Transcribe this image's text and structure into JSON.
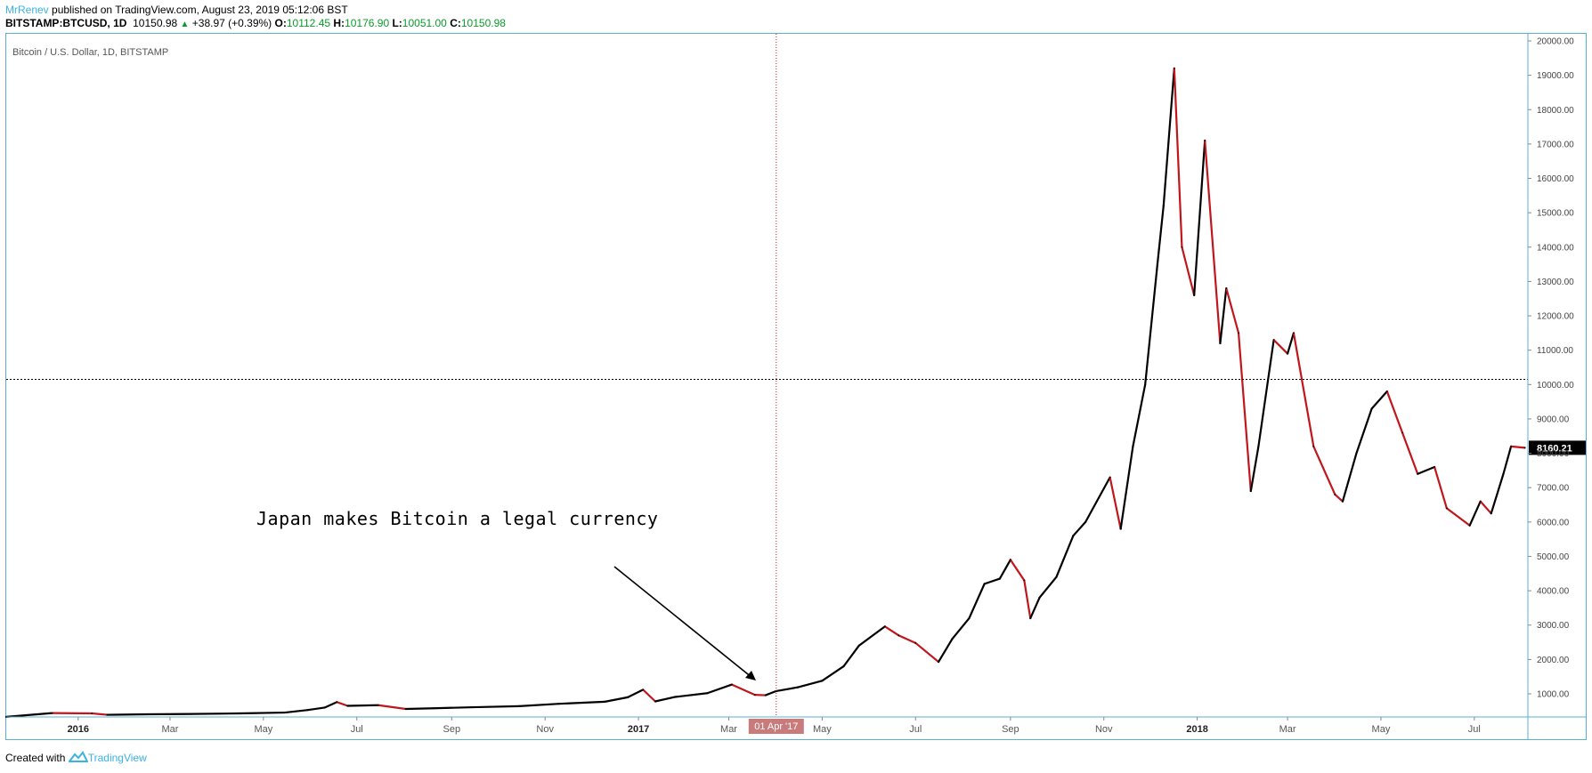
{
  "header": {
    "author": "MrRenev",
    "published_text": " published on TradingView.com, August 23, 2019 05:12:06 BST",
    "symbol": "BITSTAMP:BTCUSD, 1D",
    "last": "10150.98",
    "change": "+38.97 (+0.39%)",
    "o_label": "O:",
    "o_value": "10112.45",
    "h_label": "H:",
    "h_value": "10176.90",
    "l_label": "L:",
    "l_value": "10051.00",
    "c_label": "C:",
    "c_value": "10150.98"
  },
  "chart_title": "Bitcoin / U.S. Dollar, 1D, BITSTAMP",
  "annotation": "Japan makes Bitcoin a legal currency",
  "footer": {
    "created_with": "Created with",
    "brand": "TradingView"
  },
  "colors": {
    "up": "#000000",
    "down": "#c0161c",
    "frame": "#5ab0d3",
    "crosshair": "#c0161c",
    "price_tag_bg": "#000000"
  },
  "chart_data": {
    "type": "line",
    "title": "Bitcoin / U.S. Dollar, 1D, BITSTAMP",
    "ylim": [
      0,
      20000
    ],
    "y_ticks": [
      "1000.00",
      "2000.00",
      "3000.00",
      "4000.00",
      "5000.00",
      "6000.00",
      "7000.00",
      "8000.00",
      "9000.00",
      "10000.00",
      "11000.00",
      "12000.00",
      "13000.00",
      "14000.00",
      "15000.00",
      "16000.00",
      "17000.00",
      "18000.00",
      "19000.00",
      "20000.00"
    ],
    "x_ticks": [
      {
        "label": "2016",
        "date": "2016-01-01",
        "bold": true
      },
      {
        "label": "Mar",
        "date": "2016-03-01"
      },
      {
        "label": "May",
        "date": "2016-05-01"
      },
      {
        "label": "Jul",
        "date": "2016-07-01"
      },
      {
        "label": "Sep",
        "date": "2016-09-01"
      },
      {
        "label": "Nov",
        "date": "2016-11-01"
      },
      {
        "label": "2017",
        "date": "2017-01-01",
        "bold": true
      },
      {
        "label": "Mar",
        "date": "2017-03-01"
      },
      {
        "label": "May",
        "date": "2017-05-01"
      },
      {
        "label": "Jul",
        "date": "2017-07-01"
      },
      {
        "label": "Sep",
        "date": "2017-09-01"
      },
      {
        "label": "Nov",
        "date": "2017-11-01"
      },
      {
        "label": "2018",
        "date": "2018-01-01",
        "bold": true
      },
      {
        "label": "Mar",
        "date": "2018-03-01"
      },
      {
        "label": "May",
        "date": "2018-05-01"
      },
      {
        "label": "Jul",
        "date": "2018-07-01"
      }
    ],
    "x_range": [
      "2015-11-15",
      "2018-08-05"
    ],
    "crosshair": {
      "x_label": "01 Apr '17",
      "x_date": "2017-04-01",
      "y_value": 10150.98
    },
    "price_label": "8160.21",
    "price_label_value": 8160.21,
    "series": [
      {
        "values": [
          [
            "2015-11-15",
            330
          ],
          [
            "2015-12-15",
            440
          ],
          [
            "2016-01-10",
            430
          ],
          [
            "2016-01-20",
            390
          ],
          [
            "2016-02-15",
            405
          ],
          [
            "2016-03-15",
            415
          ],
          [
            "2016-04-15",
            430
          ],
          [
            "2016-05-15",
            455
          ],
          [
            "2016-05-30",
            530
          ],
          [
            "2016-06-10",
            600
          ],
          [
            "2016-06-18",
            760
          ],
          [
            "2016-06-25",
            650
          ],
          [
            "2016-07-15",
            670
          ],
          [
            "2016-08-02",
            560
          ],
          [
            "2016-08-20",
            580
          ],
          [
            "2016-09-15",
            610
          ],
          [
            "2016-10-15",
            640
          ],
          [
            "2016-11-10",
            710
          ],
          [
            "2016-12-10",
            770
          ],
          [
            "2016-12-25",
            900
          ],
          [
            "2017-01-04",
            1120
          ],
          [
            "2017-01-12",
            780
          ],
          [
            "2017-01-25",
            910
          ],
          [
            "2017-02-15",
            1020
          ],
          [
            "2017-03-03",
            1270
          ],
          [
            "2017-03-18",
            970
          ],
          [
            "2017-03-25",
            960
          ],
          [
            "2017-04-01",
            1080
          ],
          [
            "2017-04-15",
            1190
          ],
          [
            "2017-05-01",
            1380
          ],
          [
            "2017-05-15",
            1800
          ],
          [
            "2017-05-25",
            2400
          ],
          [
            "2017-06-11",
            2960
          ],
          [
            "2017-06-20",
            2700
          ],
          [
            "2017-07-01",
            2480
          ],
          [
            "2017-07-16",
            1930
          ],
          [
            "2017-07-25",
            2600
          ],
          [
            "2017-08-05",
            3200
          ],
          [
            "2017-08-15",
            4200
          ],
          [
            "2017-08-25",
            4350
          ],
          [
            "2017-09-01",
            4900
          ],
          [
            "2017-09-10",
            4300
          ],
          [
            "2017-09-14",
            3200
          ],
          [
            "2017-09-20",
            3800
          ],
          [
            "2017-10-01",
            4400
          ],
          [
            "2017-10-12",
            5600
          ],
          [
            "2017-10-20",
            6000
          ],
          [
            "2017-11-05",
            7300
          ],
          [
            "2017-11-12",
            5800
          ],
          [
            "2017-11-20",
            8200
          ],
          [
            "2017-11-28",
            10000
          ],
          [
            "2017-12-06",
            13500
          ],
          [
            "2017-12-10",
            15200
          ],
          [
            "2017-12-17",
            19200
          ],
          [
            "2017-12-22",
            14000
          ],
          [
            "2017-12-30",
            12600
          ],
          [
            "2018-01-06",
            17100
          ],
          [
            "2018-01-16",
            11200
          ],
          [
            "2018-01-20",
            12800
          ],
          [
            "2018-01-28",
            11500
          ],
          [
            "2018-02-05",
            6900
          ],
          [
            "2018-02-10",
            8200
          ],
          [
            "2018-02-20",
            11300
          ],
          [
            "2018-03-01",
            10900
          ],
          [
            "2018-03-05",
            11500
          ],
          [
            "2018-03-18",
            8200
          ],
          [
            "2018-04-01",
            6800
          ],
          [
            "2018-04-06",
            6600
          ],
          [
            "2018-04-15",
            8000
          ],
          [
            "2018-04-25",
            9300
          ],
          [
            "2018-05-05",
            9800
          ],
          [
            "2018-05-15",
            8600
          ],
          [
            "2018-05-25",
            7400
          ],
          [
            "2018-06-05",
            7600
          ],
          [
            "2018-06-13",
            6400
          ],
          [
            "2018-06-28",
            5900
          ],
          [
            "2018-07-05",
            6600
          ],
          [
            "2018-07-12",
            6250
          ],
          [
            "2018-07-20",
            7400
          ],
          [
            "2018-07-25",
            8200
          ],
          [
            "2018-08-03",
            8160
          ]
        ]
      }
    ]
  }
}
